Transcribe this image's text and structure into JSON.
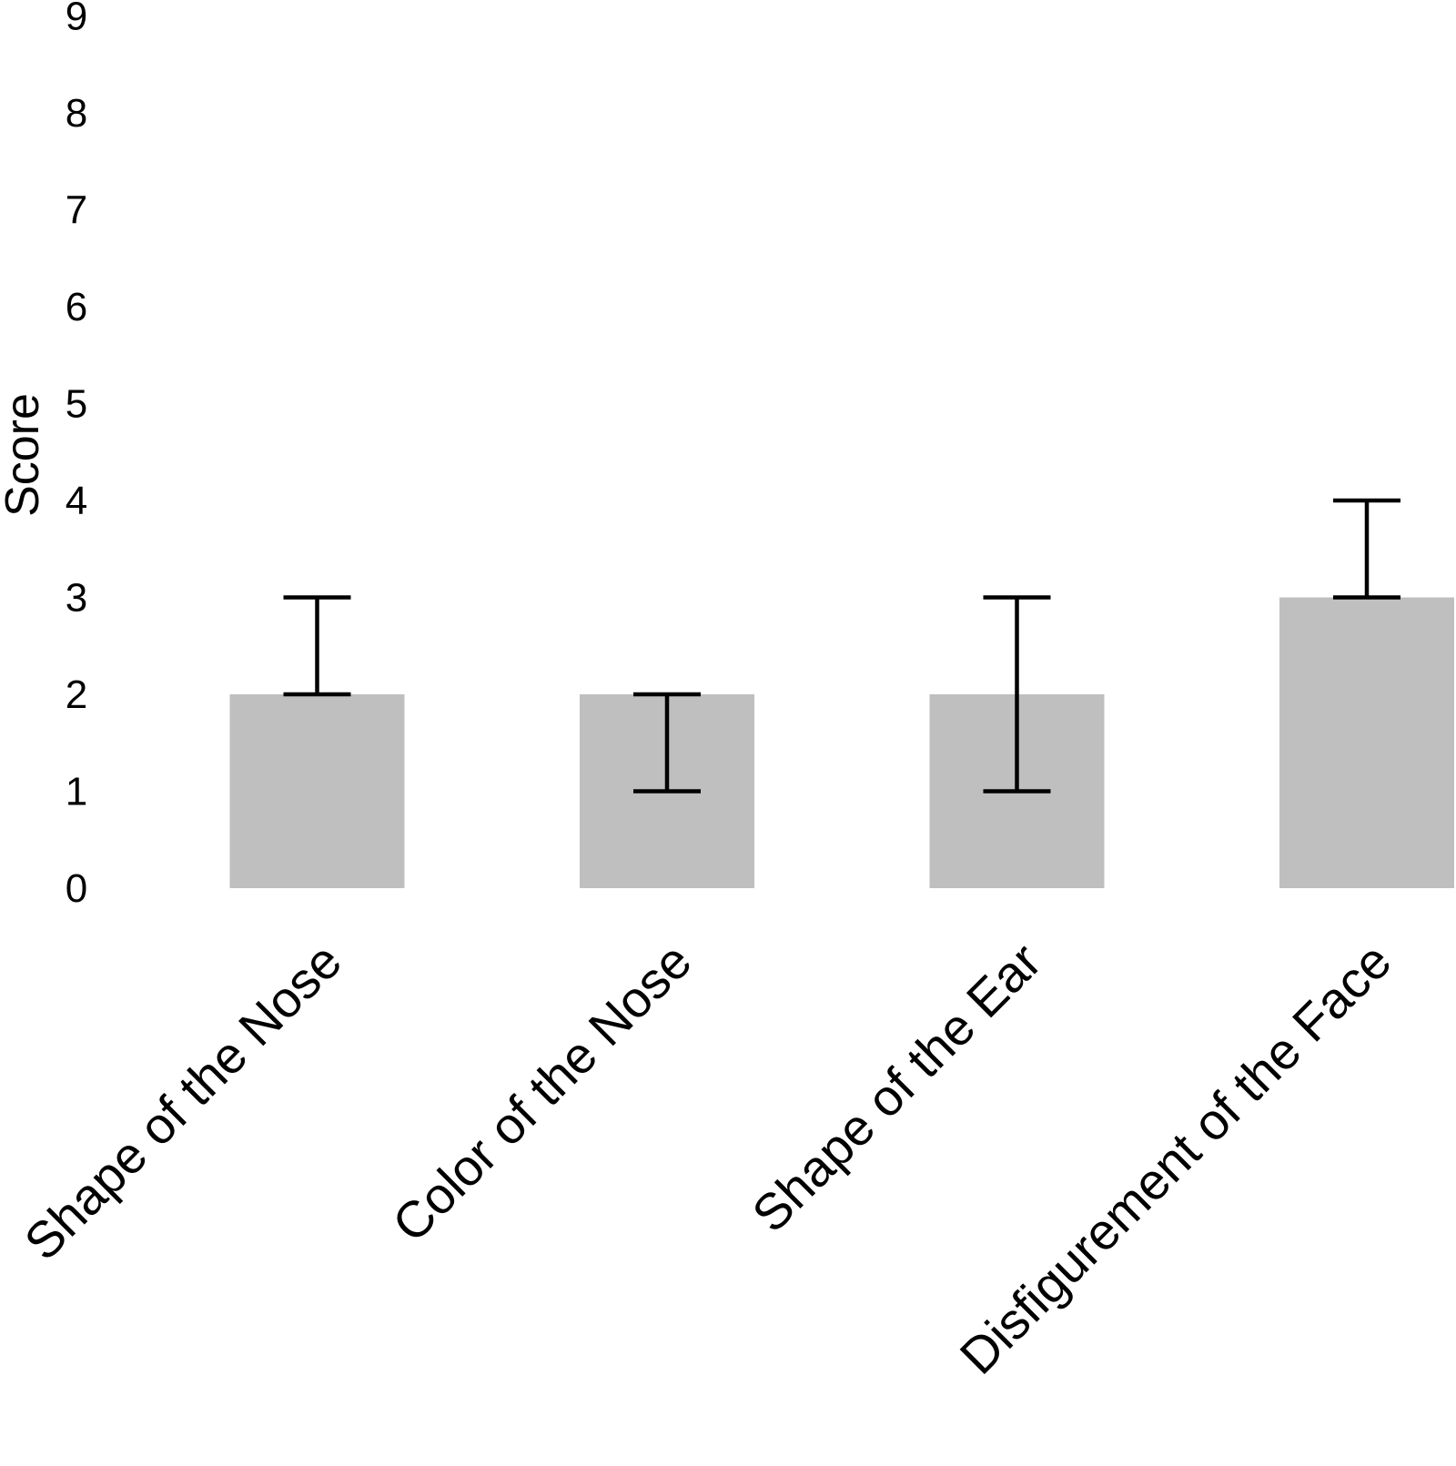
{
  "chart_data": {
    "type": "bar",
    "title": "",
    "xlabel": "",
    "ylabel": "Score",
    "ylim": [
      0,
      9
    ],
    "yticks": [
      "0",
      "1",
      "2",
      "3",
      "4",
      "5",
      "6",
      "7",
      "8",
      "9"
    ],
    "grid": false,
    "legend": "none",
    "categories": [
      "Shape of the Nose",
      "Color of the Nose",
      "Shape of the Ear",
      "Disfigurement of the Face"
    ],
    "values": [
      2,
      2,
      2,
      3
    ],
    "error_low": [
      2,
      1,
      1,
      3
    ],
    "error_high": [
      3,
      2,
      3,
      4
    ],
    "colors": {
      "bar": "#bfbfbf",
      "error_bar": "#000000",
      "text": "#000000"
    }
  }
}
